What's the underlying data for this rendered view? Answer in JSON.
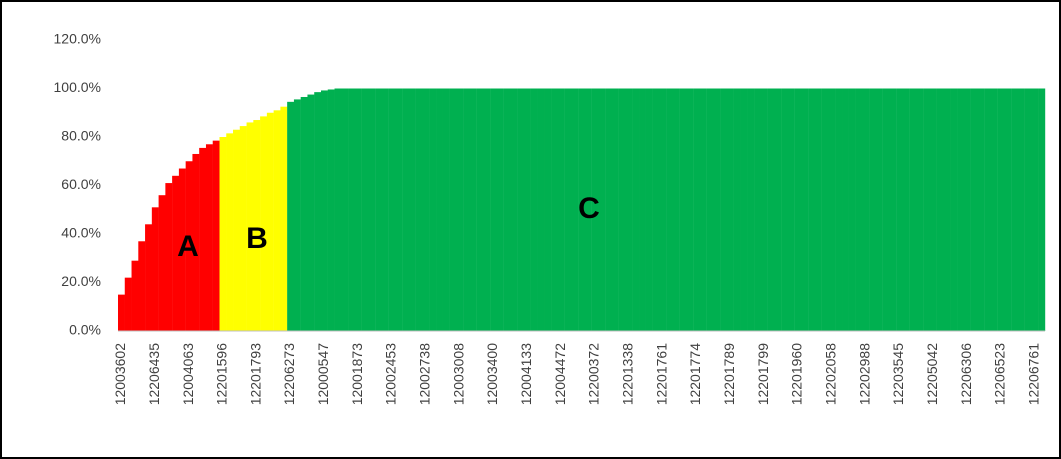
{
  "chart_data": {
    "type": "bar",
    "categories": [
      "12003602",
      null,
      null,
      null,
      null,
      "12206435",
      null,
      null,
      null,
      null,
      "12004063",
      null,
      null,
      null,
      null,
      "12201596",
      null,
      null,
      null,
      null,
      "12201793",
      null,
      null,
      null,
      null,
      "12206273",
      null,
      null,
      null,
      null,
      "12000547",
      null,
      null,
      null,
      null,
      "12001873",
      null,
      null,
      null,
      null,
      "12002453",
      null,
      null,
      null,
      null,
      "12002738",
      null,
      null,
      null,
      null,
      "12003008",
      null,
      null,
      null,
      null,
      "12003400",
      null,
      null,
      null,
      null,
      "12004133",
      null,
      null,
      null,
      null,
      "12004472",
      null,
      null,
      null,
      null,
      "12200372",
      null,
      null,
      null,
      null,
      "12201338",
      null,
      null,
      null,
      null,
      "12201761",
      null,
      null,
      null,
      null,
      "12201774",
      null,
      null,
      null,
      null,
      "12201789",
      null,
      null,
      null,
      null,
      "12201799",
      null,
      null,
      null,
      null,
      "12201960",
      null,
      null,
      null,
      null,
      "12202058",
      null,
      null,
      null,
      null,
      "12202988",
      null,
      null,
      null,
      null,
      "12203545",
      null,
      null,
      null,
      null,
      "12205042",
      null,
      null,
      null,
      null,
      "12206306",
      null,
      null,
      null,
      null,
      "12206523",
      null,
      null,
      null,
      null,
      "12206761",
      null
    ],
    "series": [
      {
        "name": "A",
        "color": "#ff0000",
        "values": [
          15,
          22,
          29,
          37,
          44,
          51,
          56,
          61,
          64,
          67,
          70,
          73,
          75.5,
          77,
          78.5,
          null,
          null,
          null,
          null,
          null,
          null,
          null,
          null,
          null,
          null,
          null,
          null,
          null,
          null,
          null,
          null,
          null,
          null,
          null,
          null,
          null,
          null,
          null,
          null,
          null,
          null,
          null,
          null,
          null,
          null,
          null,
          null,
          null,
          null,
          null,
          null,
          null,
          null,
          null,
          null,
          null,
          null,
          null,
          null,
          null,
          null,
          null,
          null,
          null,
          null,
          null,
          null,
          null,
          null,
          null,
          null,
          null,
          null,
          null,
          null,
          null,
          null,
          null,
          null,
          null,
          null,
          null,
          null,
          null,
          null,
          null,
          null,
          null,
          null,
          null,
          null,
          null,
          null,
          null,
          null,
          null,
          null,
          null,
          null,
          null,
          null,
          null,
          null,
          null,
          null,
          null,
          null,
          null,
          null,
          null,
          null,
          null,
          null,
          null,
          null,
          null,
          null,
          null,
          null,
          null,
          null,
          null,
          null,
          null,
          null,
          null,
          null,
          null,
          null,
          null,
          null,
          null,
          null,
          null,
          null,
          null,
          null
        ]
      },
      {
        "name": "B",
        "color": "#ffff00",
        "values": [
          null,
          null,
          null,
          null,
          null,
          null,
          null,
          null,
          null,
          null,
          null,
          null,
          null,
          null,
          null,
          80,
          81.5,
          83,
          84.5,
          86,
          87,
          88.5,
          90,
          91,
          92.5,
          null,
          null,
          null,
          null,
          null,
          null,
          null,
          null,
          null,
          null,
          null,
          null,
          null,
          null,
          null,
          null,
          null,
          null,
          null,
          null,
          null,
          null,
          null,
          null,
          null,
          null,
          null,
          null,
          null,
          null,
          null,
          null,
          null,
          null,
          null,
          null,
          null,
          null,
          null,
          null,
          null,
          null,
          null,
          null,
          null,
          null,
          null,
          null,
          null,
          null,
          null,
          null,
          null,
          null,
          null,
          null,
          null,
          null,
          null,
          null,
          null,
          null,
          null,
          null,
          null,
          null,
          null,
          null,
          null,
          null,
          null,
          null,
          null,
          null,
          null,
          null,
          null,
          null,
          null,
          null,
          null,
          null,
          null,
          null,
          null,
          null,
          null,
          null,
          null,
          null,
          null,
          null,
          null,
          null,
          null,
          null,
          null,
          null,
          null,
          null,
          null,
          null,
          null,
          null,
          null,
          null,
          null,
          null,
          null,
          null,
          null,
          null
        ]
      },
      {
        "name": "C",
        "color": "#00b050",
        "values": [
          null,
          null,
          null,
          null,
          null,
          null,
          null,
          null,
          null,
          null,
          null,
          null,
          null,
          null,
          null,
          null,
          null,
          null,
          null,
          null,
          null,
          null,
          null,
          null,
          null,
          94.5,
          95.5,
          96.5,
          97.5,
          98.5,
          99.2,
          99.6,
          100,
          100,
          100,
          100,
          100,
          100,
          100,
          100,
          100,
          100,
          100,
          100,
          100,
          100,
          100,
          100,
          100,
          100,
          100,
          100,
          100,
          100,
          100,
          100,
          100,
          100,
          100,
          100,
          100,
          100,
          100,
          100,
          100,
          100,
          100,
          100,
          100,
          100,
          100,
          100,
          100,
          100,
          100,
          100,
          100,
          100,
          100,
          100,
          100,
          100,
          100,
          100,
          100,
          100,
          100,
          100,
          100,
          100,
          100,
          100,
          100,
          100,
          100,
          100,
          100,
          100,
          100,
          100,
          100,
          100,
          100,
          100,
          100,
          100,
          100,
          100,
          100,
          100,
          100,
          100,
          100,
          100,
          100,
          100,
          100,
          100,
          100,
          100,
          100,
          100,
          100,
          100,
          100,
          100,
          100,
          100,
          100,
          100,
          100,
          100,
          100,
          100,
          100,
          100,
          100
        ]
      }
    ],
    "ylim": [
      0,
      120
    ],
    "yticks": [
      {
        "value": 0,
        "label": "0.0%"
      },
      {
        "value": 20,
        "label": "20.0%"
      },
      {
        "value": 40,
        "label": "40.0%"
      },
      {
        "value": 60,
        "label": "60.0%"
      },
      {
        "value": 80,
        "label": "80.0%"
      },
      {
        "value": 100,
        "label": "100.0%"
      },
      {
        "value": 120,
        "label": "120.0%"
      }
    ],
    "grid": false
  }
}
